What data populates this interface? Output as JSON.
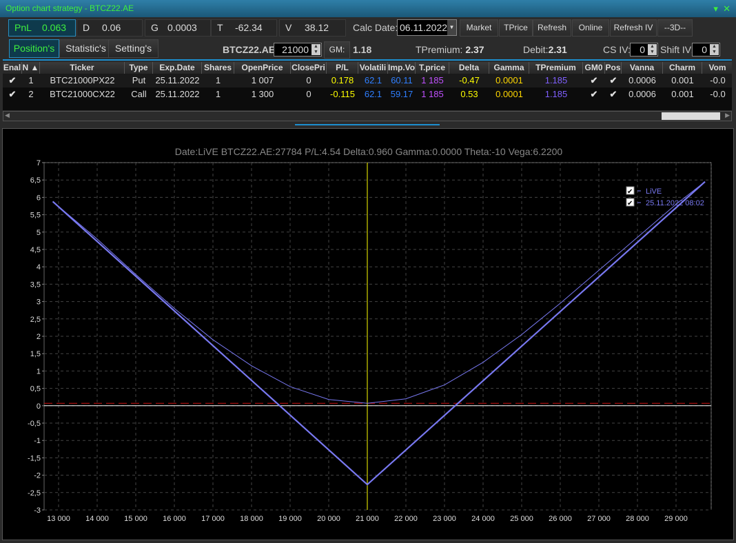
{
  "window": {
    "title": "Option chart strategy - BTCZ22.AE",
    "icons": [
      "dropdown-arrow-icon",
      "close-icon"
    ]
  },
  "greeks": [
    {
      "label": "PnL",
      "value": "0.063"
    },
    {
      "label": "D",
      "value": "0.06"
    },
    {
      "label": "G",
      "value": "0.0003"
    },
    {
      "label": "T",
      "value": "-62.34"
    },
    {
      "label": "V",
      "value": "38.12"
    }
  ],
  "toolbar": {
    "calc_date_label": "Calc Date:",
    "calc_date": "06.11.2022",
    "buttons": [
      "Market",
      "TPrice",
      "Refresh",
      "Online",
      "Refresh IV",
      "--3D--"
    ]
  },
  "tabs": [
    "Position's",
    "Statistic's",
    "Setting's"
  ],
  "info": {
    "ticker": "BTCZ22.AE",
    "strike": "21000",
    "gm_label": "GM:",
    "gm_value": "1.18",
    "tpremium_label": "TPremium:",
    "tpremium_value": "2.37",
    "debit_label": "Debit:",
    "debit_value": "2.31",
    "cs_iv_label": "CS IV:",
    "cs_iv": "0",
    "shift_iv_label": "Shift IV:",
    "shift_iv": "0"
  },
  "table": {
    "columns": [
      "Enal",
      "N ▲",
      "Ticker",
      "Type",
      "Exp.Date",
      "Shares",
      "OpenPrice",
      "ClosePri",
      "P/L",
      "Volatili",
      "Imp.Vo",
      "T.price",
      "Delta",
      "Gamma",
      "TPremium",
      "GM0",
      "Pos",
      "Vanna",
      "Charm",
      "Vom"
    ],
    "rows": [
      {
        "enabled": true,
        "n": "1",
        "ticker": "BTC21000PX22",
        "type": "Put",
        "exp": "25.11.2022",
        "shares": "1",
        "open": "1 007",
        "close": "0",
        "pl": "0.178",
        "vol": "62.1",
        "impvol": "60.11",
        "tprice": "1 185",
        "delta": "-0.47",
        "gamma": "0.0001",
        "tpremium": "1.185",
        "gm0": true,
        "pos": true,
        "vanna": "0.0006",
        "charm": "0.001",
        "vom": "-0.0"
      },
      {
        "enabled": true,
        "n": "2",
        "ticker": "BTC21000CX22",
        "type": "Call",
        "exp": "25.11.2022",
        "shares": "1",
        "open": "1 300",
        "close": "0",
        "pl": "-0.115",
        "vol": "62.1",
        "impvol": "59.17",
        "tprice": "1 185",
        "delta": "0.53",
        "gamma": "0.0001",
        "tpremium": "1.185",
        "gm0": true,
        "pos": true,
        "vanna": "0.0006",
        "charm": "0.001",
        "vom": "-0.0"
      }
    ]
  },
  "colors": {
    "accent": "#3ef03e",
    "pl": "#ffff00",
    "vol": "#2f7fff",
    "tprice": "#c050ff",
    "delta": "#ffff00",
    "gamma": "#ffd700",
    "tpremium": "#8060ff",
    "series": "#7878f0",
    "crosshair": "#ffff00",
    "breakeven": "#d01010"
  },
  "chart_data": {
    "type": "line",
    "title": "Date:LiVE  BTCZ22.AE:27784  P/L:4.54  Delta:0.960  Gamma:0.0000  Theta:-10  Vega:6.2200",
    "xlim": [
      12700,
      29900
    ],
    "ylim": [
      -3,
      7
    ],
    "xticks": [
      13000,
      14000,
      15000,
      16000,
      17000,
      18000,
      19000,
      20000,
      21000,
      22000,
      23000,
      24000,
      25000,
      26000,
      27000,
      28000,
      29000
    ],
    "xtick_labels": [
      "13 000",
      "14 000",
      "15 000",
      "16 000",
      "17 000",
      "18 000",
      "19 000",
      "20 000",
      "21 000",
      "22 000",
      "23 000",
      "24 000",
      "25 000",
      "26 000",
      "27 000",
      "28 000",
      "29 000"
    ],
    "yticks": [
      7,
      6.5,
      6,
      5.5,
      5,
      4.5,
      4,
      3.5,
      3,
      2.5,
      2,
      1.5,
      1,
      0.5,
      0,
      -0.5,
      -1,
      -1.5,
      -2,
      -2.5,
      -3
    ],
    "ytick_labels": [
      "7",
      "6,5",
      "6",
      "5,5",
      "5",
      "4,5",
      "4",
      "3,5",
      "3",
      "2,5",
      "2",
      "1,5",
      "1",
      "0,5",
      "0",
      "-0,5",
      "-1",
      "-1,5",
      "-2",
      "-2,5",
      "-3"
    ],
    "grid": true,
    "legend": "top-right",
    "crosshair_x": 21000,
    "reference_y": 0.07,
    "series": [
      {
        "name": "LiVE",
        "x": [
          12850,
          14000,
          15000,
          16000,
          17000,
          18000,
          19000,
          20000,
          21000,
          22000,
          23000,
          24000,
          25000,
          26000,
          27000,
          28000,
          29000,
          29750
        ],
        "y": [
          5.88,
          4.8,
          3.78,
          2.8,
          1.9,
          1.15,
          0.55,
          0.18,
          0.07,
          0.2,
          0.6,
          1.25,
          2.05,
          2.95,
          3.9,
          4.85,
          5.8,
          6.45
        ]
      },
      {
        "name": "25.11.2022 08:02",
        "x": [
          12850,
          21000,
          29750
        ],
        "y": [
          5.88,
          -2.27,
          6.45
        ]
      }
    ]
  }
}
